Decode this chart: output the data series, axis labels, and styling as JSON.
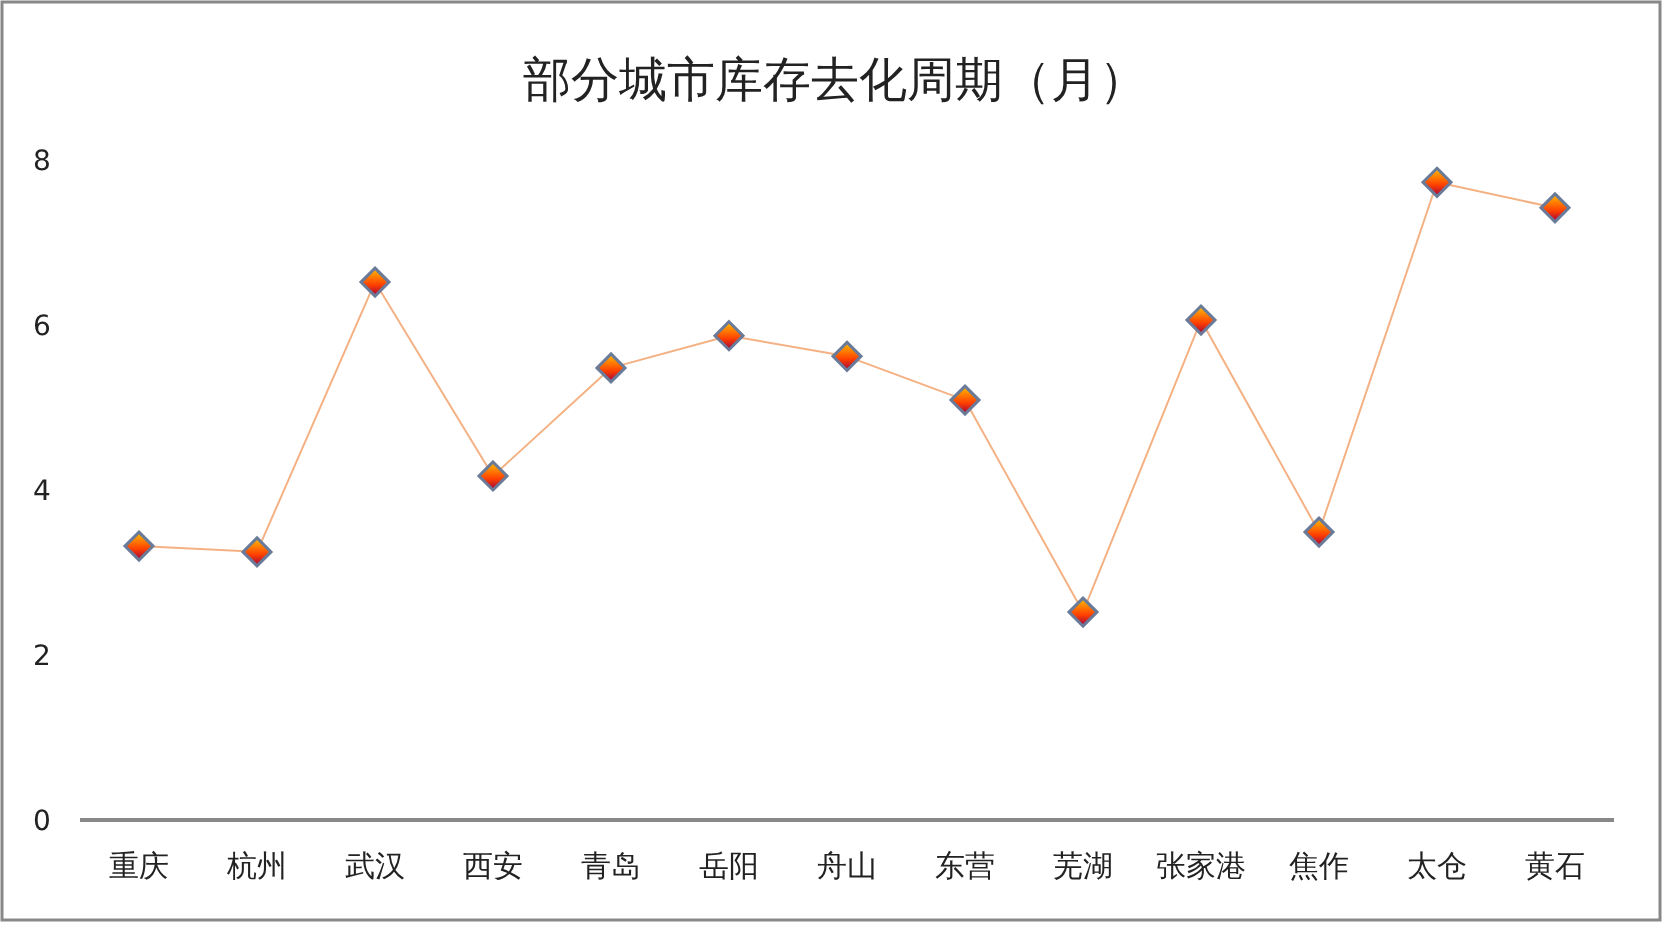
{
  "chart_data": {
    "type": "line",
    "title": "部分城市库存去化周期（月）",
    "categories": [
      "重庆",
      "杭州",
      "武汉",
      "西安",
      "青岛",
      "岳阳",
      "舟山",
      "东营",
      "芜湖",
      "张家港",
      "焦作",
      "太仓",
      "黄石"
    ],
    "series": [
      {
        "color": "#f4b183",
        "values": [
          3.32,
          3.25,
          6.52,
          4.17,
          5.48,
          5.87,
          5.62,
          5.09,
          2.52,
          6.06,
          3.49,
          7.73,
          7.42
        ]
      }
    ],
    "ylim": [
      0,
      8
    ],
    "yticks": [
      0,
      2,
      4,
      6,
      8
    ],
    "grid": false,
    "marker": "diamond",
    "line_style": "solid"
  }
}
